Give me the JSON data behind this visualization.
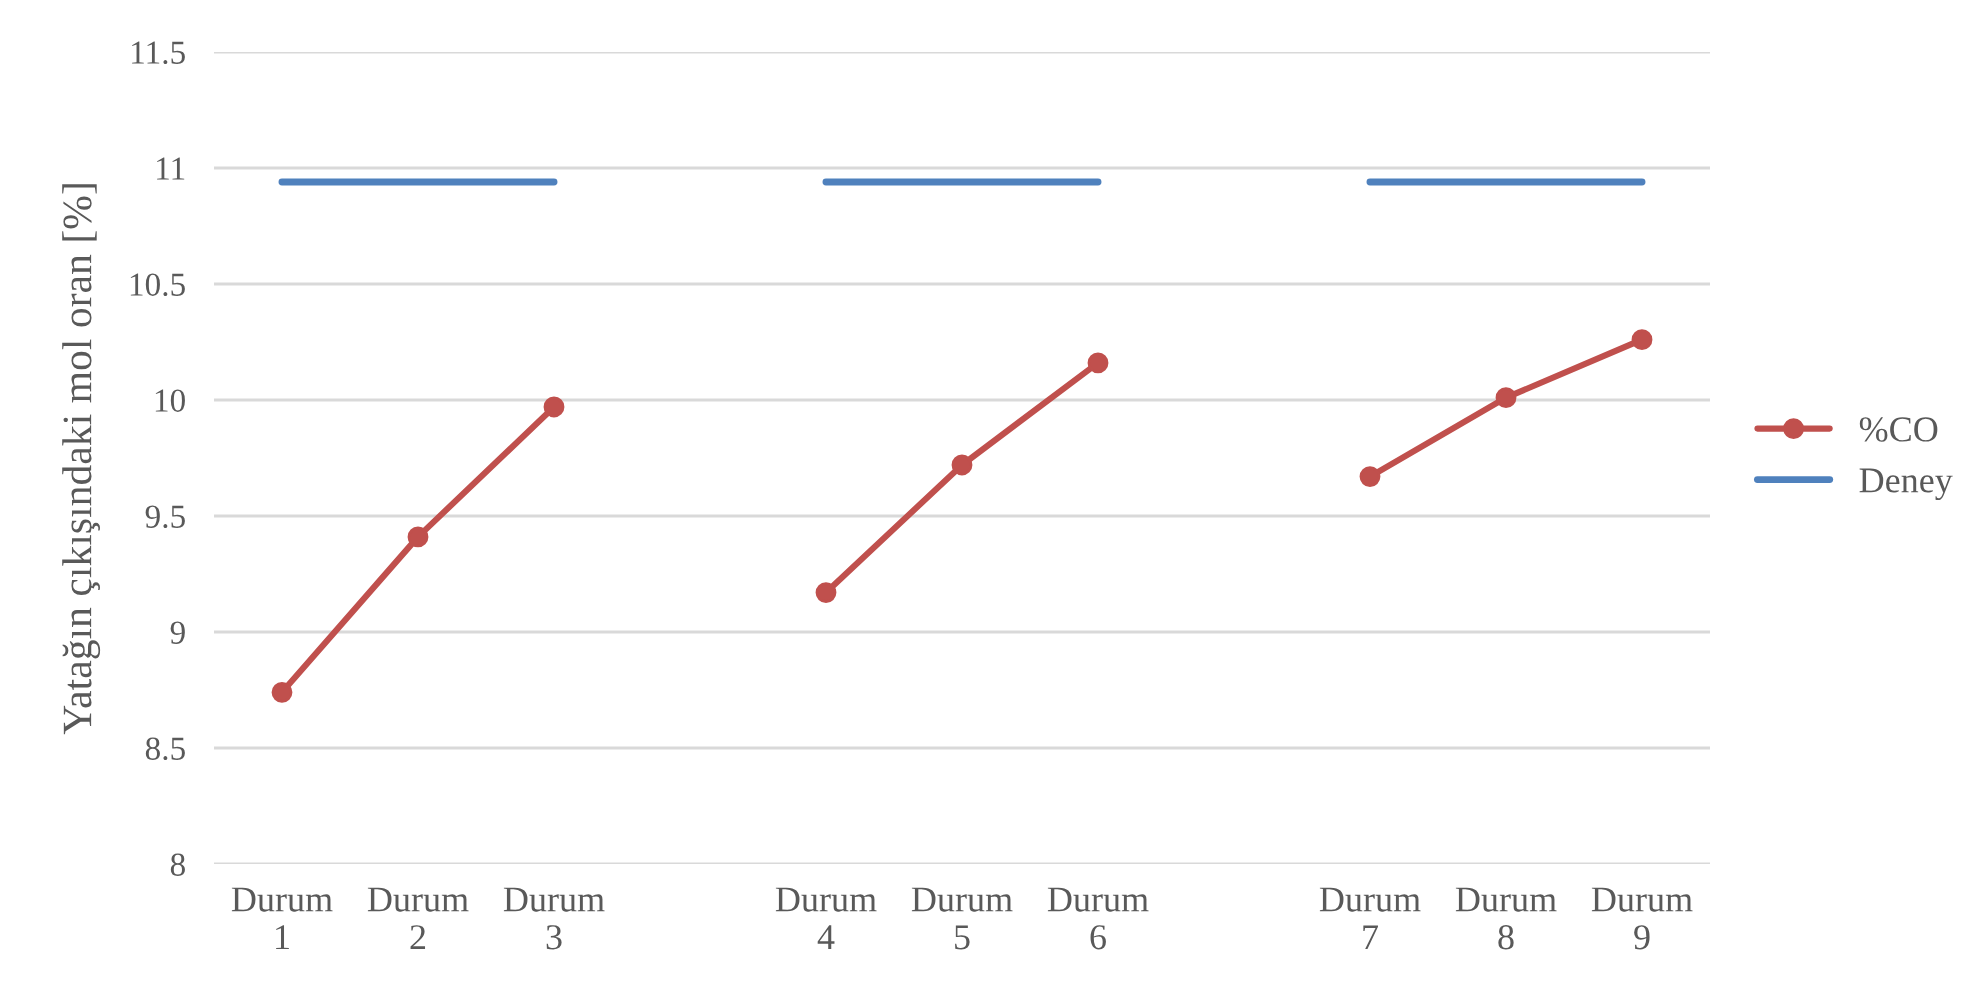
{
  "chart_data": {
    "type": "line",
    "ylabel": "Yatağın çıkışındaki mol oran [%]",
    "categories": [
      "Durum\n1",
      "Durum\n2",
      "Durum\n3",
      null,
      "Durum\n4",
      "Durum\n5",
      "Durum\n6",
      null,
      "Durum\n7",
      "Durum\n8",
      "Durum\n9"
    ],
    "series": [
      {
        "name": "%CO",
        "color": "#c0504d",
        "marker": "circle",
        "values": [
          8.74,
          9.41,
          9.97,
          null,
          9.17,
          9.72,
          10.16,
          null,
          9.67,
          10.01,
          10.26
        ]
      },
      {
        "name": "Deney",
        "color": "#4f81bd",
        "marker": "none",
        "values": [
          10.94,
          10.94,
          10.94,
          null,
          10.94,
          10.94,
          10.94,
          null,
          10.94,
          10.94,
          10.94
        ]
      }
    ],
    "ylim": [
      8,
      11.5
    ],
    "yticks": [
      8,
      8.5,
      9,
      9.5,
      10,
      10.5,
      11,
      11.5
    ],
    "grid": "y",
    "legend": "right",
    "line_style": "solid"
  }
}
